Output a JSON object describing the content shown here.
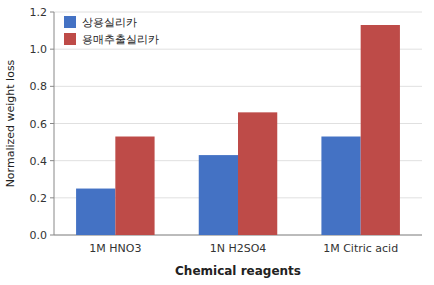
{
  "chart_data": {
    "type": "bar",
    "categories": [
      "1M HNO3",
      "1N H2SO4",
      "1M Citric acid"
    ],
    "series": [
      {
        "name": "상용실리카",
        "color": "#4472C4",
        "values": [
          0.25,
          0.43,
          0.53
        ]
      },
      {
        "name": "용매추출실리카",
        "color": "#BE4B48",
        "values": [
          0.53,
          0.66,
          1.13
        ]
      }
    ],
    "xlabel": "Chemical reagents",
    "ylabel": "Normalized weight loss",
    "ylim": [
      0,
      1.2
    ],
    "yticks": [
      {
        "value": 0,
        "label": "0.0"
      },
      0.2,
      0.4,
      0.6,
      0.8,
      {
        "value": 1.0,
        "label": "1.0"
      },
      1.2
    ],
    "grid": true,
    "legend": "upper left"
  }
}
